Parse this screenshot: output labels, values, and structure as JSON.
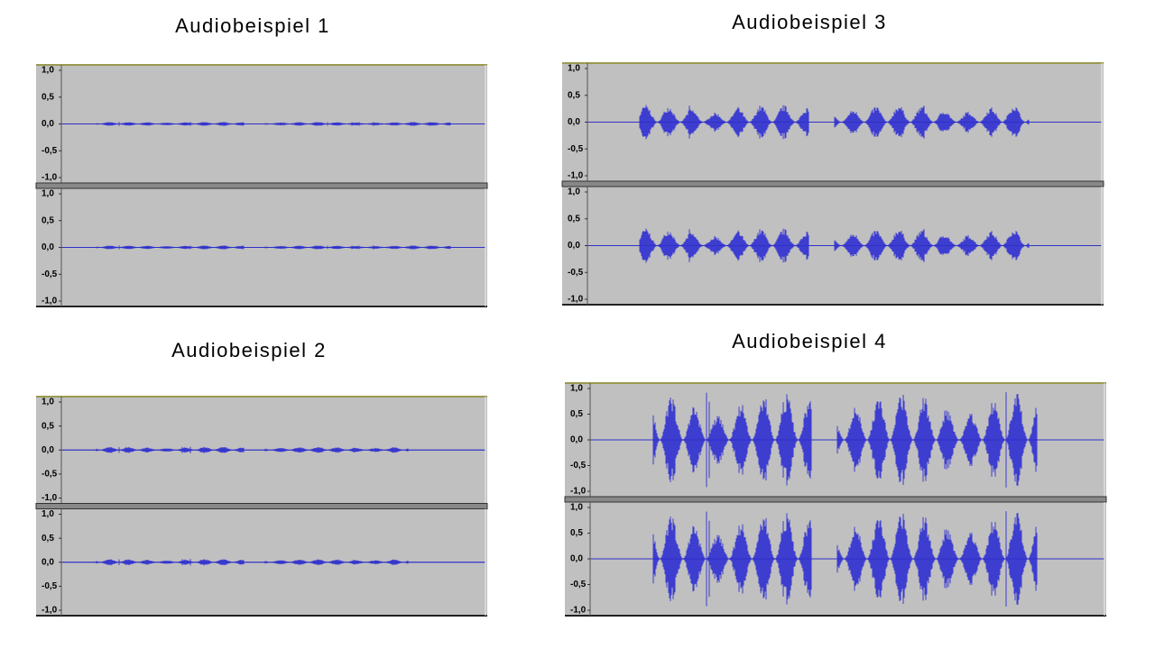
{
  "panels": [
    {
      "title": "Audiobeispiel 1"
    },
    {
      "title": "Audiobeispiel 2"
    },
    {
      "title": "Audiobeispiel 3"
    },
    {
      "title": "Audiobeispiel 4"
    }
  ],
  "axis_labels": [
    "1,0",
    "0,5",
    "0,0",
    "-0,5",
    "-1,0"
  ]
}
